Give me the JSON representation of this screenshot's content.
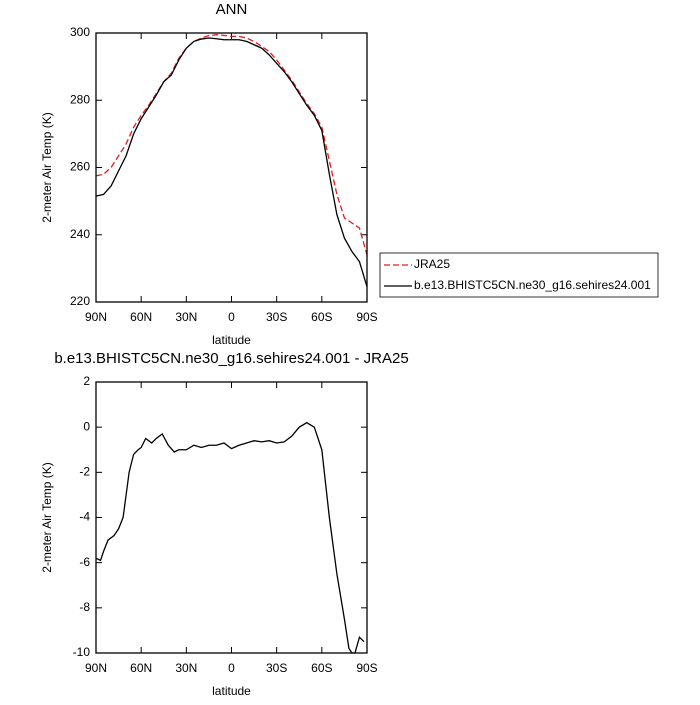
{
  "chart_data": [
    {
      "type": "line",
      "title": "ANN",
      "x_label": "latitude",
      "y_label": "2-meter Air Temp (K)",
      "x": [
        90,
        85,
        80,
        75,
        70,
        65,
        60,
        55,
        50,
        45,
        40,
        35,
        30,
        25,
        20,
        15,
        10,
        5,
        0,
        -5,
        -10,
        -15,
        -20,
        -25,
        -30,
        -35,
        -40,
        -45,
        -50,
        -55,
        -60,
        -65,
        -70,
        -75,
        -80,
        -85,
        -90
      ],
      "xlim": [
        90,
        -90
      ],
      "xticks": [
        {
          "value": 90,
          "label": "90N"
        },
        {
          "value": 60,
          "label": "60N"
        },
        {
          "value": 30,
          "label": "30N"
        },
        0,
        {
          "value": -30,
          "label": "30S"
        },
        {
          "value": -60,
          "label": "60S"
        },
        {
          "value": -90,
          "label": "90S"
        }
      ],
      "ylim": [
        220,
        300
      ],
      "yticks": [
        220,
        240,
        260,
        280,
        300
      ],
      "legend": "outside-right",
      "series": [
        {
          "name": "JRA25",
          "color": "#e41a1c",
          "dash": true,
          "values": [
            257.5,
            258,
            260,
            263.5,
            267,
            272,
            275.5,
            278.5,
            282,
            285.5,
            288,
            292.5,
            295.5,
            297.5,
            298.5,
            299.2,
            299.5,
            299.3,
            299,
            299,
            298.5,
            297.5,
            296,
            294.5,
            292,
            289,
            286,
            282.5,
            279,
            276,
            272,
            262,
            252,
            245,
            243.5,
            242,
            234
          ]
        },
        {
          "name": "b.e13.BHISTC5CN.ne30_g16.sehires24.001",
          "color": "#000000",
          "dash": false,
          "values": [
            251.5,
            252,
            254.5,
            259,
            263.5,
            270,
            274.5,
            278,
            281.5,
            285.5,
            287.5,
            292,
            295.5,
            297.5,
            298.2,
            298.5,
            298.3,
            298,
            298,
            298,
            297.5,
            296.5,
            295.5,
            293.5,
            291,
            288.5,
            285.5,
            282,
            278.5,
            275.5,
            271,
            258,
            246,
            239,
            235,
            232,
            224.5
          ]
        }
      ]
    },
    {
      "type": "line",
      "title": "b.e13.BHISTC5CN.ne30_g16.sehires24.001 - JRA25",
      "x_label": "latitude",
      "y_label": "2-meter Air Temp (K)",
      "x": [
        90,
        87,
        85,
        82,
        78,
        75,
        72,
        70,
        68,
        65,
        62,
        60,
        57,
        53,
        50,
        46,
        42,
        38,
        35,
        30,
        25,
        20,
        15,
        10,
        5,
        0,
        -5,
        -10,
        -15,
        -20,
        -25,
        -30,
        -35,
        -40,
        -45,
        -50,
        -55,
        -60,
        -65,
        -70,
        -75,
        -78,
        -80,
        -82,
        -85,
        -88
      ],
      "xlim": [
        90,
        -90
      ],
      "xticks": [
        {
          "value": 90,
          "label": "90N"
        },
        {
          "value": 60,
          "label": "60N"
        },
        {
          "value": 30,
          "label": "30N"
        },
        0,
        {
          "value": -30,
          "label": "30S"
        },
        {
          "value": -60,
          "label": "60S"
        },
        {
          "value": -90,
          "label": "90S"
        }
      ],
      "ylim": [
        -10,
        2
      ],
      "yticks": [
        -10,
        -8,
        -6,
        -4,
        -2,
        0,
        2
      ],
      "series": [
        {
          "color": "#000000",
          "dash": false,
          "values": [
            -5.8,
            -5.9,
            -5.5,
            -5.0,
            -4.8,
            -4.5,
            -4.0,
            -3.0,
            -2,
            -1.2,
            -1.0,
            -0.9,
            -0.5,
            -0.7,
            -0.5,
            -0.3,
            -0.8,
            -1.1,
            -1.0,
            -1.0,
            -0.8,
            -0.9,
            -0.8,
            -0.8,
            -0.7,
            -0.95,
            -0.8,
            -0.7,
            -0.6,
            -0.65,
            -0.6,
            -0.7,
            -0.65,
            -0.4,
            0.0,
            0.2,
            0.0,
            -1.0,
            -4,
            -6.5,
            -8.5,
            -9.8,
            -10,
            -10,
            -9.3,
            -9.5
          ]
        }
      ]
    }
  ]
}
